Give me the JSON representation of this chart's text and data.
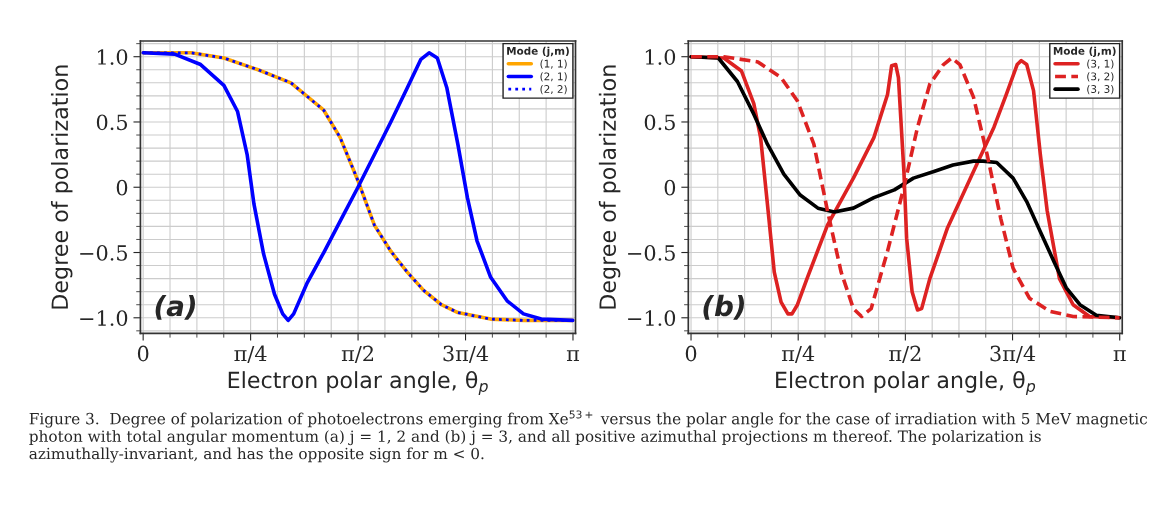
{
  "chart_data": [
    {
      "type": "line",
      "xlabel": "Electron polar angle, θ$_{p}$",
      "ylabel": "Degree of polarization",
      "legend_title": "Mode (j,m)",
      "legend": "top right",
      "grid": true,
      "xlim": [
        -0.02,
        3.16
      ],
      "ylim": [
        -1.12,
        1.12
      ],
      "xticks": [
        0,
        {
          "value": 0.7854,
          "label": "π/4"
        },
        {
          "value": 1.5708,
          "label": "π/2"
        },
        {
          "value": 2.3562,
          "label": "3π/4"
        },
        {
          "value": 3.1416,
          "label": "π"
        }
      ],
      "yticks": [
        {
          "value": -1,
          "label": "−1.0"
        },
        {
          "value": -0.5,
          "label": "−0.5"
        },
        0,
        {
          "value": 0.5,
          "label": "0.5"
        },
        {
          "value": 1,
          "label": "1.0"
        }
      ],
      "annotations": [
        "(a)",
        "Figure 3.  Degree of polarization of photoelectrons emerging from Xe$^{53+}$ versus the polar angle for the case of irradiation with 5 MeV magnetic photon with total angular momentum (a) j = 1, 2 and (b) j = 3, and all positive azimuthal projections m thereof. The polarization is azimuthally-invariant, and has the opposite sign for m < 0."
      ],
      "series": [
        {
          "name": "(1, 1)",
          "color": "#ffa500",
          "line_style": "solid",
          "x": [
            0,
            0.35,
            0.59,
            0.84,
            1.08,
            1.32,
            1.44,
            1.57,
            1.69,
            1.81,
            1.93,
            2.05,
            2.18,
            2.3,
            2.54,
            2.78,
            3.14
          ],
          "values": [
            1.03,
            1.03,
            0.99,
            0.9,
            0.8,
            0.59,
            0.38,
            0.05,
            -0.29,
            -0.49,
            -0.65,
            -0.79,
            -0.9,
            -0.96,
            -1.01,
            -1.02,
            -1.02
          ]
        },
        {
          "name": "(2, 1)",
          "color": "#0000ff",
          "line_style": "solid",
          "x": [
            0,
            0.23,
            0.42,
            0.59,
            0.69,
            0.76,
            0.81,
            0.88,
            0.96,
            1.02,
            1.06,
            1.1,
            1.2,
            1.32,
            1.44,
            1.57,
            1.81,
            1.93,
            2.03,
            2.09,
            2.15,
            2.22,
            2.3,
            2.37,
            2.44,
            2.54,
            2.66,
            2.78,
            2.91,
            3.14
          ],
          "values": [
            1.03,
            1.02,
            0.94,
            0.78,
            0.58,
            0.25,
            -0.13,
            -0.51,
            -0.82,
            -0.97,
            -1.02,
            -0.97,
            -0.73,
            -0.5,
            -0.26,
            0,
            0.5,
            0.76,
            0.98,
            1.03,
            0.99,
            0.76,
            0.33,
            -0.08,
            -0.41,
            -0.69,
            -0.87,
            -0.97,
            -1.01,
            -1.02
          ]
        },
        {
          "name": "(2, 2)",
          "color": "#0000ff",
          "line_style": "dotted",
          "x": [
            0,
            0.35,
            0.59,
            0.84,
            1.08,
            1.32,
            1.44,
            1.57,
            1.69,
            1.81,
            1.93,
            2.05,
            2.18,
            2.3,
            2.54,
            2.78,
            3.14
          ],
          "values": [
            1.03,
            1.03,
            0.99,
            0.9,
            0.8,
            0.59,
            0.38,
            0.05,
            -0.29,
            -0.49,
            -0.65,
            -0.79,
            -0.9,
            -0.96,
            -1.01,
            -1.02,
            -1.02
          ]
        }
      ]
    },
    {
      "type": "line",
      "xlabel": "Electron polar angle, θ$_{p}$",
      "ylabel": "Degree of polarization",
      "legend_title": "Mode (j,m)",
      "legend": "top right",
      "grid": true,
      "xlim": [
        -0.02,
        3.16
      ],
      "ylim": [
        -1.12,
        1.12
      ],
      "xticks": [
        0,
        {
          "value": 0.7854,
          "label": "π/4"
        },
        {
          "value": 1.5708,
          "label": "π/2"
        },
        {
          "value": 2.3562,
          "label": "3π/4"
        },
        {
          "value": 3.1416,
          "label": "π"
        }
      ],
      "yticks": [
        {
          "value": -1,
          "label": "−1.0"
        },
        {
          "value": -0.5,
          "label": "−0.5"
        },
        0,
        {
          "value": 0.5,
          "label": "0.5"
        },
        {
          "value": 1,
          "label": "1.0"
        }
      ],
      "annotations": [
        "(b)"
      ],
      "series": [
        {
          "name": "(3, 1)",
          "color": "#dd2222",
          "line_style": "solid",
          "x": [
            0,
            0.24,
            0.37,
            0.46,
            0.51,
            0.56,
            0.61,
            0.66,
            0.71,
            0.74,
            0.78,
            0.85,
            1.0,
            1.19,
            1.34,
            1.44,
            1.47,
            1.5,
            1.52,
            1.56,
            1.58,
            1.62,
            1.66,
            1.69,
            1.75,
            1.88,
            2.07,
            2.22,
            2.31,
            2.39,
            2.42,
            2.46,
            2.51,
            2.56,
            2.61,
            2.7,
            2.8,
            2.92,
            3.14
          ],
          "values": [
            1.0,
            0.99,
            0.89,
            0.64,
            0.38,
            -0.13,
            -0.65,
            -0.88,
            -0.97,
            -0.97,
            -0.9,
            -0.7,
            -0.29,
            0.07,
            0.38,
            0.71,
            0.93,
            0.94,
            0.84,
            0.12,
            -0.39,
            -0.8,
            -0.94,
            -0.93,
            -0.7,
            -0.31,
            0.12,
            0.46,
            0.71,
            0.94,
            0.97,
            0.94,
            0.74,
            0.25,
            -0.18,
            -0.7,
            -0.9,
            -0.99,
            -1.0
          ]
        },
        {
          "name": "(3, 2)",
          "color": "#dd2222",
          "line_style": "dashed",
          "x": [
            0,
            0.24,
            0.49,
            0.66,
            0.78,
            0.9,
            1.0,
            1.1,
            1.19,
            1.25,
            1.32,
            1.44,
            1.56,
            1.66,
            1.75,
            1.85,
            1.91,
            1.97,
            2.07,
            2.17,
            2.27,
            2.36,
            2.48,
            2.63,
            2.8,
            3.14
          ],
          "values": [
            1.0,
            1.0,
            0.96,
            0.84,
            0.66,
            0.33,
            -0.18,
            -0.65,
            -0.93,
            -0.99,
            -0.93,
            -0.49,
            0,
            0.46,
            0.79,
            0.94,
            0.99,
            0.94,
            0.69,
            0.25,
            -0.24,
            -0.62,
            -0.85,
            -0.95,
            -0.99,
            -1.0
          ]
        },
        {
          "name": "(3, 3)",
          "color": "#000000",
          "line_style": "solid",
          "x": [
            0,
            0.2,
            0.34,
            0.46,
            0.56,
            0.68,
            0.8,
            0.93,
            1.05,
            1.19,
            1.34,
            1.49,
            1.63,
            1.78,
            1.92,
            2.07,
            2.14,
            2.24,
            2.36,
            2.46,
            2.56,
            2.66,
            2.75,
            2.85,
            2.97,
            3.14
          ],
          "values": [
            1.0,
            0.99,
            0.81,
            0.56,
            0.33,
            0.1,
            -0.06,
            -0.16,
            -0.19,
            -0.16,
            -0.08,
            -0.02,
            0.07,
            0.12,
            0.17,
            0.2,
            0.2,
            0.19,
            0.07,
            -0.11,
            -0.34,
            -0.57,
            -0.77,
            -0.9,
            -0.98,
            -1.0
          ]
        }
      ]
    }
  ]
}
